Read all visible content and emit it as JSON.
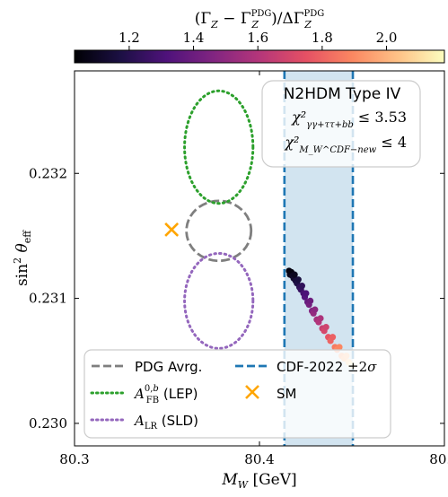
{
  "chart_data": {
    "type": "scatter",
    "xlabel": "M_W [GeV]",
    "ylabel": "sin²θ_eff",
    "xlim": [
      80.3,
      80.5
    ],
    "ylim": [
      0.22982,
      0.23282
    ],
    "x_ticks": [
      "80.3",
      "80.4",
      "80.5"
    ],
    "y_ticks": [
      "0.230",
      "0.231",
      "0.232"
    ],
    "colorbar": {
      "label": "(Γ_Z − Γ_Z^PDG)/ΔΓ_Z^PDG",
      "ticks": [
        "1.2",
        "1.4",
        "1.6",
        "1.8",
        "2.0"
      ],
      "range": [
        1.03,
        2.18
      ],
      "colormap": "magma"
    },
    "annotation": {
      "title": "N2HDM Type IV",
      "line1_prefix": "χ²",
      "line1_sub": "γγ+ττ+bb",
      "line1_suffix": " ≤ 3.53",
      "line2_prefix": "χ²",
      "line2_sub": "M_W^CDF−new",
      "line2_suffix": " ≤ 4"
    },
    "band": {
      "name": "CDF-2022 ±2σ",
      "x_min": 80.4135,
      "x_max": 80.4505,
      "color": "#1f77b4"
    },
    "ellipses": [
      {
        "name": "PDG Avrg.",
        "cx": 80.378,
        "cy": 0.23154,
        "rx": 0.0175,
        "ry": 0.00024,
        "color": "#7f7f7f",
        "style": "dashed"
      },
      {
        "name": "A_FB^{0,b} (LEP)",
        "cx": 80.378,
        "cy": 0.23221,
        "rx": 0.0185,
        "ry": 0.00045,
        "color": "#2ca02c",
        "style": "dotted"
      },
      {
        "name": "A_LR (SLD)",
        "cx": 80.378,
        "cy": 0.23098,
        "rx": 0.0185,
        "ry": 0.00038,
        "color": "#9467bd",
        "style": "dotted"
      }
    ],
    "sm_point": {
      "name": "SM",
      "x": 80.3525,
      "y": 0.23155,
      "color": "#ffa500"
    },
    "scatter": [
      {
        "x": 80.416,
        "y": 0.23122,
        "c": 1.05
      },
      {
        "x": 80.4165,
        "y": 0.23119,
        "c": 1.08
      },
      {
        "x": 80.4172,
        "y": 0.23121,
        "c": 1.06
      },
      {
        "x": 80.4178,
        "y": 0.23118,
        "c": 1.1
      },
      {
        "x": 80.4185,
        "y": 0.23116,
        "c": 1.12
      },
      {
        "x": 80.419,
        "y": 0.23119,
        "c": 1.09
      },
      {
        "x": 80.4196,
        "y": 0.23114,
        "c": 1.15
      },
      {
        "x": 80.4203,
        "y": 0.23112,
        "c": 1.18
      },
      {
        "x": 80.421,
        "y": 0.23115,
        "c": 1.16
      },
      {
        "x": 80.4216,
        "y": 0.23109,
        "c": 1.22
      },
      {
        "x": 80.4224,
        "y": 0.23107,
        "c": 1.25
      },
      {
        "x": 80.423,
        "y": 0.2311,
        "c": 1.23
      },
      {
        "x": 80.4238,
        "y": 0.23104,
        "c": 1.29
      },
      {
        "x": 80.4245,
        "y": 0.23101,
        "c": 1.33
      },
      {
        "x": 80.4252,
        "y": 0.23104,
        "c": 1.31
      },
      {
        "x": 80.426,
        "y": 0.23097,
        "c": 1.38
      },
      {
        "x": 80.4268,
        "y": 0.23095,
        "c": 1.42
      },
      {
        "x": 80.4275,
        "y": 0.23098,
        "c": 1.4
      },
      {
        "x": 80.4284,
        "y": 0.2309,
        "c": 1.47
      },
      {
        "x": 80.4292,
        "y": 0.23088,
        "c": 1.51
      },
      {
        "x": 80.43,
        "y": 0.23091,
        "c": 1.49
      },
      {
        "x": 80.431,
        "y": 0.23083,
        "c": 1.56
      },
      {
        "x": 80.432,
        "y": 0.23081,
        "c": 1.6
      },
      {
        "x": 80.433,
        "y": 0.23084,
        "c": 1.58
      },
      {
        "x": 80.434,
        "y": 0.23076,
        "c": 1.66
      },
      {
        "x": 80.435,
        "y": 0.23074,
        "c": 1.7
      },
      {
        "x": 80.436,
        "y": 0.23077,
        "c": 1.68
      },
      {
        "x": 80.4372,
        "y": 0.23069,
        "c": 1.76
      },
      {
        "x": 80.4384,
        "y": 0.23066,
        "c": 1.8
      },
      {
        "x": 80.4396,
        "y": 0.23069,
        "c": 1.79
      },
      {
        "x": 80.4408,
        "y": 0.23061,
        "c": 1.86
      },
      {
        "x": 80.442,
        "y": 0.23059,
        "c": 1.9
      },
      {
        "x": 80.4432,
        "y": 0.23061,
        "c": 1.89
      },
      {
        "x": 80.4445,
        "y": 0.23054,
        "c": 1.96
      },
      {
        "x": 80.4458,
        "y": 0.23052,
        "c": 2.0
      },
      {
        "x": 80.447,
        "y": 0.23054,
        "c": 2.02
      },
      {
        "x": 80.4482,
        "y": 0.23049,
        "c": 2.07
      },
      {
        "x": 80.4494,
        "y": 0.23047,
        "c": 2.12
      },
      {
        "x": 80.4503,
        "y": 0.23046,
        "c": 2.16
      }
    ]
  }
}
